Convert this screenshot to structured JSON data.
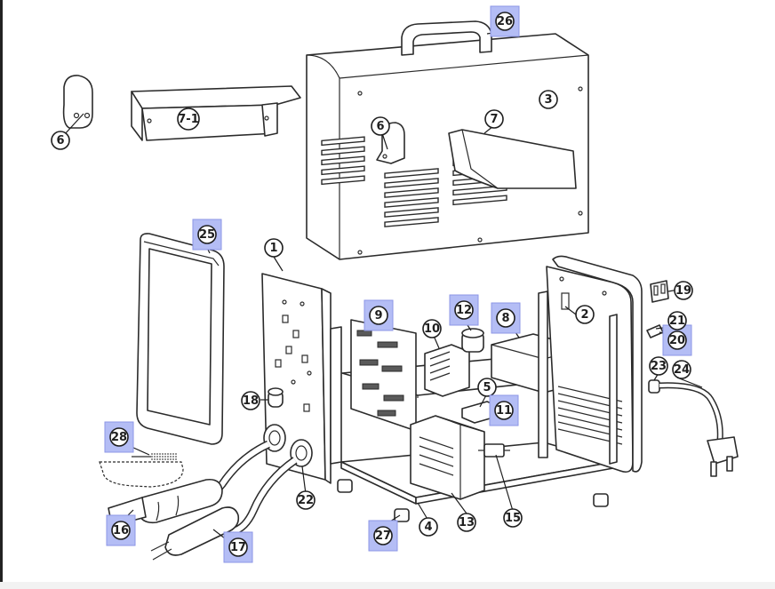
{
  "diagram": {
    "callouts": [
      {
        "label": "1",
        "highlighted": false
      },
      {
        "label": "2",
        "highlighted": false
      },
      {
        "label": "3",
        "highlighted": false
      },
      {
        "label": "4",
        "highlighted": false
      },
      {
        "label": "5",
        "highlighted": false
      },
      {
        "label": "6",
        "highlighted": false
      },
      {
        "label": "6",
        "highlighted": false
      },
      {
        "label": "7",
        "highlighted": false
      },
      {
        "label": "7-1",
        "highlighted": false
      },
      {
        "label": "8",
        "highlighted": true
      },
      {
        "label": "9",
        "highlighted": true
      },
      {
        "label": "10",
        "highlighted": false
      },
      {
        "label": "11",
        "highlighted": true
      },
      {
        "label": "12",
        "highlighted": true
      },
      {
        "label": "13",
        "highlighted": false
      },
      {
        "label": "15",
        "highlighted": false
      },
      {
        "label": "16",
        "highlighted": true
      },
      {
        "label": "17",
        "highlighted": true
      },
      {
        "label": "18",
        "highlighted": false
      },
      {
        "label": "19",
        "highlighted": false
      },
      {
        "label": "20",
        "highlighted": true
      },
      {
        "label": "21",
        "highlighted": false
      },
      {
        "label": "22",
        "highlighted": false
      },
      {
        "label": "23",
        "highlighted": false
      },
      {
        "label": "24",
        "highlighted": false
      },
      {
        "label": "25",
        "highlighted": true
      },
      {
        "label": "26",
        "highlighted": true
      },
      {
        "label": "27",
        "highlighted": true
      },
      {
        "label": "28",
        "highlighted": true
      }
    ],
    "colors": {
      "highlight_fill": "#b4bdf5",
      "line": "#2b2b2b",
      "background": "#ffffff"
    }
  }
}
